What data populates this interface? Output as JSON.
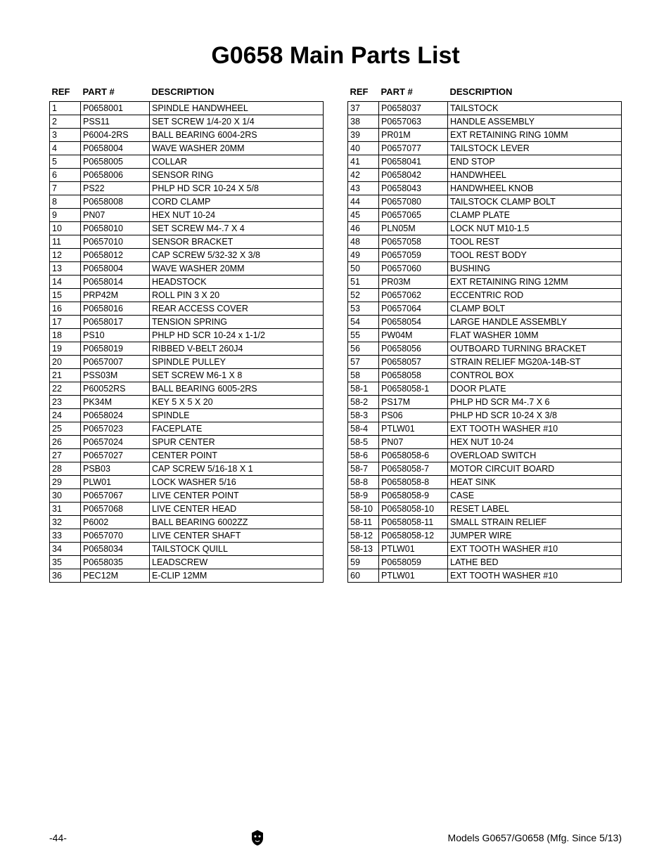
{
  "title": "G0658 Main Parts List",
  "headers": {
    "ref": "REF",
    "part": "PART #",
    "desc": "DESCRIPTION"
  },
  "footer": {
    "page": "-44-",
    "model": "Models G0657/G0658 (Mfg. Since 5/13)"
  },
  "left": [
    {
      "ref": "1",
      "part": "P0658001",
      "desc": "SPINDLE HANDWHEEL"
    },
    {
      "ref": "2",
      "part": "PSS11",
      "desc": "SET SCREW 1/4-20 X 1/4"
    },
    {
      "ref": "3",
      "part": "P6004-2RS",
      "desc": "BALL BEARING 6004-2RS"
    },
    {
      "ref": "4",
      "part": "P0658004",
      "desc": "WAVE WASHER 20MM"
    },
    {
      "ref": "5",
      "part": "P0658005",
      "desc": "COLLAR"
    },
    {
      "ref": "6",
      "part": "P0658006",
      "desc": "SENSOR RING"
    },
    {
      "ref": "7",
      "part": "PS22",
      "desc": "PHLP HD SCR 10-24 X 5/8"
    },
    {
      "ref": "8",
      "part": "P0658008",
      "desc": "CORD CLAMP"
    },
    {
      "ref": "9",
      "part": "PN07",
      "desc": "HEX NUT 10-24"
    },
    {
      "ref": "10",
      "part": "P0658010",
      "desc": "SET SCREW M4-.7 X 4"
    },
    {
      "ref": "11",
      "part": "P0657010",
      "desc": "SENSOR BRACKET"
    },
    {
      "ref": "12",
      "part": "P0658012",
      "desc": "CAP SCREW 5/32-32 X 3/8"
    },
    {
      "ref": "13",
      "part": "P0658004",
      "desc": "WAVE WASHER 20MM"
    },
    {
      "ref": "14",
      "part": "P0658014",
      "desc": "HEADSTOCK"
    },
    {
      "ref": "15",
      "part": "PRP42M",
      "desc": "ROLL PIN 3 X 20"
    },
    {
      "ref": "16",
      "part": "P0658016",
      "desc": "REAR ACCESS COVER"
    },
    {
      "ref": "17",
      "part": "P0658017",
      "desc": "TENSION SPRING"
    },
    {
      "ref": "18",
      "part": "PS10",
      "desc": "PHLP HD SCR 10-24 x 1-1/2"
    },
    {
      "ref": "19",
      "part": "P0658019",
      "desc": "RIBBED V-BELT 260J4"
    },
    {
      "ref": "20",
      "part": "P0657007",
      "desc": "SPINDLE PULLEY"
    },
    {
      "ref": "21",
      "part": "PSS03M",
      "desc": "SET SCREW M6-1 X 8"
    },
    {
      "ref": "22",
      "part": "P60052RS",
      "desc": "BALL BEARING 6005-2RS"
    },
    {
      "ref": "23",
      "part": "PK34M",
      "desc": "KEY 5 X 5 X 20"
    },
    {
      "ref": "24",
      "part": "P0658024",
      "desc": "SPINDLE"
    },
    {
      "ref": "25",
      "part": "P0657023",
      "desc": "FACEPLATE"
    },
    {
      "ref": "26",
      "part": "P0657024",
      "desc": "SPUR CENTER"
    },
    {
      "ref": "27",
      "part": "P0657027",
      "desc": "CENTER POINT"
    },
    {
      "ref": "28",
      "part": "PSB03",
      "desc": "CAP SCREW 5/16-18 X 1"
    },
    {
      "ref": "29",
      "part": "PLW01",
      "desc": "LOCK WASHER 5/16"
    },
    {
      "ref": "30",
      "part": "P0657067",
      "desc": "LIVE CENTER POINT"
    },
    {
      "ref": "31",
      "part": "P0657068",
      "desc": "LIVE CENTER HEAD"
    },
    {
      "ref": "32",
      "part": "P6002",
      "desc": "BALL BEARING 6002ZZ"
    },
    {
      "ref": "33",
      "part": "P0657070",
      "desc": "LIVE CENTER SHAFT"
    },
    {
      "ref": "34",
      "part": "P0658034",
      "desc": "TAILSTOCK QUILL"
    },
    {
      "ref": "35",
      "part": "P0658035",
      "desc": "LEADSCREW"
    },
    {
      "ref": "36",
      "part": "PEC12M",
      "desc": "E-CLIP 12MM"
    }
  ],
  "right": [
    {
      "ref": "37",
      "part": "P0658037",
      "desc": "TAILSTOCK"
    },
    {
      "ref": "38",
      "part": "P0657063",
      "desc": "HANDLE ASSEMBLY"
    },
    {
      "ref": "39",
      "part": "PR01M",
      "desc": "EXT RETAINING RING 10MM"
    },
    {
      "ref": "40",
      "part": "P0657077",
      "desc": "TAILSTOCK LEVER"
    },
    {
      "ref": "41",
      "part": "P0658041",
      "desc": "END STOP"
    },
    {
      "ref": "42",
      "part": "P0658042",
      "desc": "HANDWHEEL"
    },
    {
      "ref": "43",
      "part": "P0658043",
      "desc": "HANDWHEEL KNOB"
    },
    {
      "ref": "44",
      "part": "P0657080",
      "desc": "TAILSTOCK CLAMP BOLT"
    },
    {
      "ref": "45",
      "part": "P0657065",
      "desc": "CLAMP PLATE"
    },
    {
      "ref": "46",
      "part": "PLN05M",
      "desc": "LOCK NUT M10-1.5"
    },
    {
      "ref": "48",
      "part": "P0657058",
      "desc": "TOOL REST"
    },
    {
      "ref": "49",
      "part": "P0657059",
      "desc": "TOOL REST BODY"
    },
    {
      "ref": "50",
      "part": "P0657060",
      "desc": "BUSHING"
    },
    {
      "ref": "51",
      "part": "PR03M",
      "desc": "EXT RETAINING RING 12MM"
    },
    {
      "ref": "52",
      "part": "P0657062",
      "desc": "ECCENTRIC ROD"
    },
    {
      "ref": "53",
      "part": "P0657064",
      "desc": "CLAMP BOLT"
    },
    {
      "ref": "54",
      "part": "P0658054",
      "desc": "LARGE HANDLE ASSEMBLY"
    },
    {
      "ref": "55",
      "part": "PW04M",
      "desc": "FLAT WASHER 10MM"
    },
    {
      "ref": "56",
      "part": "P0658056",
      "desc": "OUTBOARD TURNING BRACKET"
    },
    {
      "ref": "57",
      "part": "P0658057",
      "desc": "STRAIN RELIEF MG20A-14B-ST"
    },
    {
      "ref": "58",
      "part": "P0658058",
      "desc": "CONTROL BOX"
    },
    {
      "ref": "58-1",
      "part": "P0658058-1",
      "desc": "DOOR PLATE"
    },
    {
      "ref": "58-2",
      "part": "PS17M",
      "desc": "PHLP HD SCR M4-.7 X 6"
    },
    {
      "ref": "58-3",
      "part": "PS06",
      "desc": "PHLP HD SCR 10-24 X 3/8"
    },
    {
      "ref": "58-4",
      "part": "PTLW01",
      "desc": "EXT TOOTH WASHER #10"
    },
    {
      "ref": "58-5",
      "part": "PN07",
      "desc": "HEX NUT 10-24"
    },
    {
      "ref": "58-6",
      "part": "P0658058-6",
      "desc": "OVERLOAD SWITCH"
    },
    {
      "ref": "58-7",
      "part": "P0658058-7",
      "desc": "MOTOR CIRCUIT BOARD"
    },
    {
      "ref": "58-8",
      "part": "P0658058-8",
      "desc": "HEAT SINK"
    },
    {
      "ref": "58-9",
      "part": "P0658058-9",
      "desc": "CASE"
    },
    {
      "ref": "58-10",
      "part": "P0658058-10",
      "desc": "RESET LABEL"
    },
    {
      "ref": "58-11",
      "part": "P0658058-11",
      "desc": "SMALL STRAIN RELIEF"
    },
    {
      "ref": "58-12",
      "part": "P0658058-12",
      "desc": "JUMPER WIRE"
    },
    {
      "ref": "58-13",
      "part": "PTLW01",
      "desc": "EXT TOOTH WASHER #10"
    },
    {
      "ref": "59",
      "part": "P0658059",
      "desc": "LATHE BED"
    },
    {
      "ref": "60",
      "part": "PTLW01",
      "desc": "EXT TOOTH WASHER #10"
    }
  ]
}
